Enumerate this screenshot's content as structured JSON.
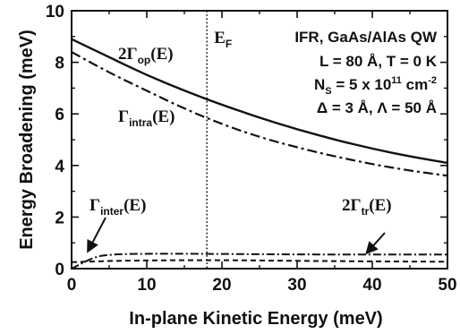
{
  "chart_data": {
    "type": "line",
    "xlabel": "In-plane Kinetic Energy (meV)",
    "ylabel": "Energy Broadening (meV)",
    "xlim": [
      0,
      50
    ],
    "ylim": [
      0,
      10
    ],
    "xticks": [
      0,
      10,
      20,
      30,
      40,
      50
    ],
    "yticks": [
      0,
      2,
      4,
      6,
      8,
      10
    ],
    "grid": false,
    "legend": "none",
    "annotations": {
      "fermi_label_main": "E",
      "fermi_label_sub": "F",
      "fermi_x": 18,
      "info": [
        {
          "parts": [
            "IFR, GaAs/AlAs QW"
          ]
        },
        {
          "parts": [
            "L = 80 Å, T = 0 K"
          ]
        },
        {
          "parts": [
            "N",
            "S",
            " = 5 x 10",
            "11",
            " cm",
            "-2"
          ]
        },
        {
          "parts": [
            "Δ = 3 Å, Λ = 50 Å"
          ]
        }
      ]
    },
    "series": [
      {
        "name_parts": [
          "2Γ",
          "op",
          "(E)"
        ],
        "style": "solid",
        "x": [
          0,
          5,
          10,
          15,
          20,
          25,
          30,
          35,
          40,
          45,
          50
        ],
        "y": [
          8.9,
          8.2,
          7.5,
          6.9,
          6.35,
          5.85,
          5.4,
          5.0,
          4.65,
          4.35,
          4.1
        ]
      },
      {
        "name_parts": [
          "Γ",
          "intra",
          "(E)"
        ],
        "style": "dashdot",
        "x": [
          0,
          5,
          10,
          15,
          20,
          25,
          30,
          35,
          40,
          45,
          50
        ],
        "y": [
          8.4,
          7.6,
          6.9,
          6.2,
          5.6,
          5.1,
          4.7,
          4.35,
          4.05,
          3.8,
          3.6
        ]
      },
      {
        "name_parts": [
          "Γ",
          "inter",
          "(E)"
        ],
        "style": "dashdot-small",
        "x": [
          0,
          3,
          5,
          10,
          20,
          30,
          40,
          50
        ],
        "y": [
          0.0,
          0.45,
          0.55,
          0.58,
          0.57,
          0.55,
          0.55,
          0.55
        ]
      },
      {
        "name_parts": [
          "2Γ",
          "tr",
          "(E)"
        ],
        "style": "dashed",
        "x": [
          0,
          5,
          10,
          20,
          30,
          40,
          50
        ],
        "y": [
          0.25,
          0.3,
          0.32,
          0.33,
          0.3,
          0.28,
          0.27
        ]
      }
    ]
  }
}
